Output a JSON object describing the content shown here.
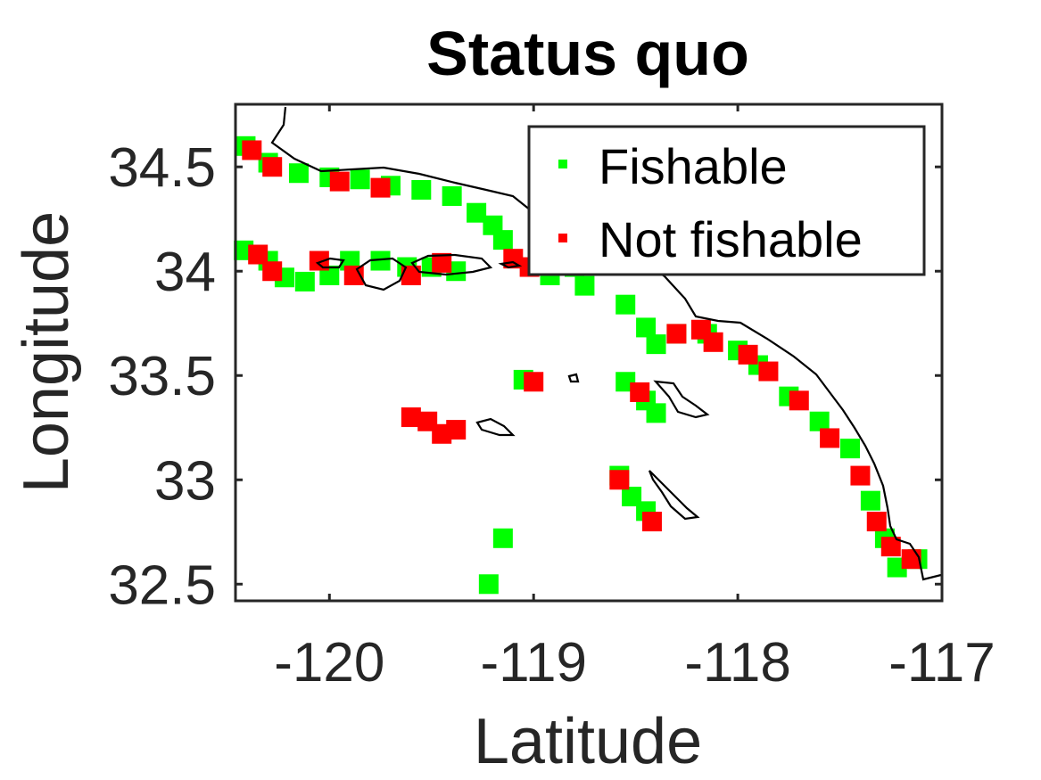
{
  "chart_data": {
    "type": "scatter",
    "title": "Status quo",
    "xlabel": "Latitude",
    "ylabel": "Longitude",
    "xlim": [
      -120.46,
      -117.0
    ],
    "ylim": [
      32.42,
      34.8
    ],
    "xticks": [
      -120,
      -119,
      -118,
      -117
    ],
    "xtick_labels": [
      "-120",
      "-119",
      "-118",
      "-117"
    ],
    "yticks": [
      32.5,
      33,
      33.5,
      34,
      34.5
    ],
    "ytick_labels": [
      "32.5",
      "33",
      "33.5",
      "34",
      "34.5"
    ],
    "grid": false,
    "legend_position": "top-right",
    "series": [
      {
        "name": "Fishable",
        "color": "#00ff00",
        "points": [
          [
            -120.41,
            34.6
          ],
          [
            -120.3,
            34.52
          ],
          [
            -120.15,
            34.47
          ],
          [
            -120.0,
            34.45
          ],
          [
            -119.85,
            34.44
          ],
          [
            -119.7,
            34.41
          ],
          [
            -119.55,
            34.39
          ],
          [
            -119.4,
            34.36
          ],
          [
            -119.28,
            34.28
          ],
          [
            -119.2,
            34.22
          ],
          [
            -119.15,
            34.15
          ],
          [
            -118.92,
            33.98
          ],
          [
            -118.8,
            34.02
          ],
          [
            -118.75,
            33.93
          ],
          [
            -118.55,
            33.84
          ],
          [
            -118.45,
            33.73
          ],
          [
            -118.4,
            33.65
          ],
          [
            -118.3,
            33.7
          ],
          [
            -118.15,
            33.7
          ],
          [
            -118.0,
            33.62
          ],
          [
            -117.9,
            33.55
          ],
          [
            -117.75,
            33.4
          ],
          [
            -117.6,
            33.28
          ],
          [
            -117.45,
            33.15
          ],
          [
            -117.35,
            32.9
          ],
          [
            -117.28,
            32.72
          ],
          [
            -117.22,
            32.58
          ],
          [
            -117.12,
            32.62
          ],
          [
            -120.42,
            34.1
          ],
          [
            -120.3,
            34.05
          ],
          [
            -120.22,
            33.97
          ],
          [
            -120.12,
            33.95
          ],
          [
            -120.0,
            33.98
          ],
          [
            -119.9,
            34.05
          ],
          [
            -119.75,
            34.05
          ],
          [
            -119.62,
            34.02
          ],
          [
            -119.5,
            34.02
          ],
          [
            -119.38,
            34.0
          ],
          [
            -118.55,
            33.47
          ],
          [
            -118.45,
            33.38
          ],
          [
            -118.4,
            33.32
          ],
          [
            -118.58,
            33.02
          ],
          [
            -118.52,
            32.92
          ],
          [
            -118.45,
            32.85
          ],
          [
            -119.05,
            33.48
          ],
          [
            -119.15,
            32.72
          ],
          [
            -119.22,
            32.5
          ]
        ]
      },
      {
        "name": "Not fishable",
        "color": "#ff0000",
        "points": [
          [
            -120.38,
            34.58
          ],
          [
            -120.28,
            34.5
          ],
          [
            -119.75,
            34.4
          ],
          [
            -119.95,
            34.43
          ],
          [
            -119.1,
            34.06
          ],
          [
            -119.02,
            34.02
          ],
          [
            -118.3,
            33.7
          ],
          [
            -118.18,
            33.72
          ],
          [
            -118.12,
            33.66
          ],
          [
            -117.95,
            33.6
          ],
          [
            -117.85,
            33.52
          ],
          [
            -117.7,
            33.38
          ],
          [
            -117.55,
            33.2
          ],
          [
            -117.4,
            33.02
          ],
          [
            -117.32,
            32.8
          ],
          [
            -117.25,
            32.68
          ],
          [
            -117.15,
            32.62
          ],
          [
            -120.35,
            34.08
          ],
          [
            -120.28,
            34.0
          ],
          [
            -120.05,
            34.05
          ],
          [
            -119.88,
            33.98
          ],
          [
            -119.6,
            33.98
          ],
          [
            -119.45,
            34.04
          ],
          [
            -119.6,
            33.3
          ],
          [
            -119.52,
            33.28
          ],
          [
            -119.45,
            33.22
          ],
          [
            -119.38,
            33.24
          ],
          [
            -119.0,
            33.47
          ],
          [
            -118.58,
            33.0
          ],
          [
            -118.42,
            32.8
          ],
          [
            -118.48,
            33.42
          ]
        ]
      }
    ]
  },
  "map": {
    "coast_color": "#000000",
    "frame_color": "#262626"
  }
}
